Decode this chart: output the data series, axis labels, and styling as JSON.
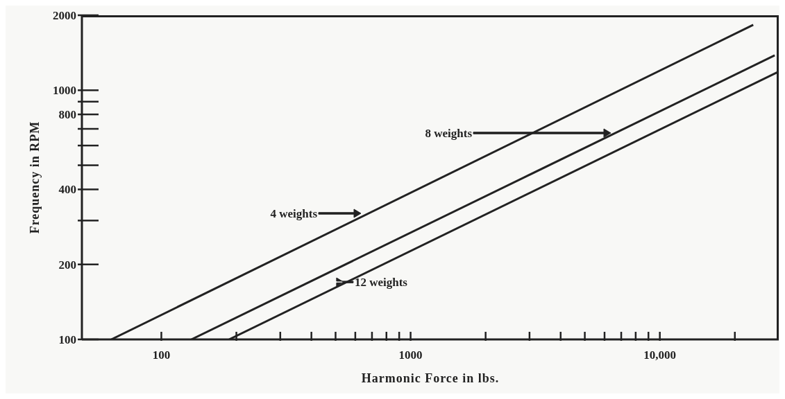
{
  "chart_data": {
    "type": "line",
    "xlabel": "Harmonic Force in lbs.",
    "ylabel": "Frequency in RPM",
    "log": "xy",
    "grid": false,
    "marker": "none",
    "line_style": "solid",
    "xlim": [
      48,
      30000
    ],
    "ylim": [
      100,
      2000
    ],
    "xticks": [
      {
        "value": 100,
        "label": "100"
      },
      {
        "value": 200,
        "label": null
      },
      {
        "value": 300,
        "label": null
      },
      {
        "value": 400,
        "label": null
      },
      {
        "value": 500,
        "label": null
      },
      {
        "value": 600,
        "label": null
      },
      {
        "value": 700,
        "label": null
      },
      {
        "value": 800,
        "label": null
      },
      {
        "value": 900,
        "label": null
      },
      {
        "value": 1000,
        "label": "1000"
      },
      {
        "value": 2000,
        "label": null
      },
      {
        "value": 3000,
        "label": null
      },
      {
        "value": 4000,
        "label": null
      },
      {
        "value": 5000,
        "label": null
      },
      {
        "value": 6000,
        "label": null
      },
      {
        "value": 7000,
        "label": null
      },
      {
        "value": 8000,
        "label": null
      },
      {
        "value": 9000,
        "label": null
      },
      {
        "value": 10000,
        "label": "10,000"
      },
      {
        "value": 20000,
        "label": null
      }
    ],
    "yticks": [
      100,
      200,
      {
        "value": 300,
        "label": null
      },
      400,
      {
        "value": 500,
        "label": null
      },
      {
        "value": 600,
        "label": null
      },
      {
        "value": 700,
        "label": null
      },
      800,
      {
        "value": 900,
        "label": null
      },
      1000,
      2000
    ],
    "series": [
      {
        "color": "#222222",
        "x": [
          63,
          23700
        ],
        "values": [
          100,
          1830
        ]
      },
      {
        "color": "#222222",
        "x": [
          132,
          28900
        ],
        "values": [
          100,
          1380
        ]
      },
      {
        "color": "#222222",
        "x": [
          187,
          29600
        ],
        "values": [
          100,
          1180
        ]
      }
    ],
    "annotations": [
      "4 weights",
      "8 weights",
      {
        "text": "12 weights",
        "x": 538,
        "y": 170
      }
    ]
  }
}
